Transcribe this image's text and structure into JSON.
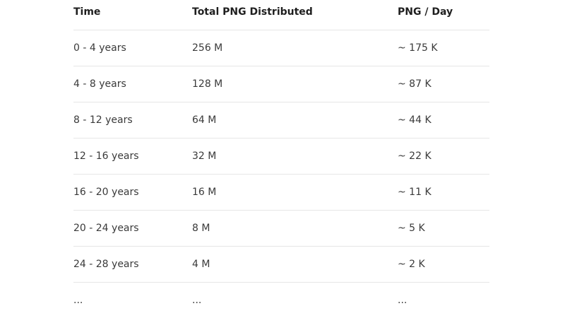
{
  "table": {
    "headers": [
      "Time",
      "Total PNG Distributed",
      "PNG / Day"
    ],
    "rows": [
      [
        "0 - 4 years",
        "256 M",
        "~ 175 K"
      ],
      [
        "4 - 8 years",
        "128 M",
        "~ 87 K"
      ],
      [
        "8 - 12 years",
        "64 M",
        "~ 44 K"
      ],
      [
        "12 - 16 years",
        "32 M",
        "~ 22 K"
      ],
      [
        "16 - 20 years",
        "16 M",
        "~ 11 K"
      ],
      [
        "20 - 24 years",
        "8 M",
        "~ 5 K"
      ],
      [
        "24 - 28 years",
        "4 M",
        "~ 2 K"
      ],
      [
        "...",
        "...",
        "..."
      ]
    ]
  }
}
